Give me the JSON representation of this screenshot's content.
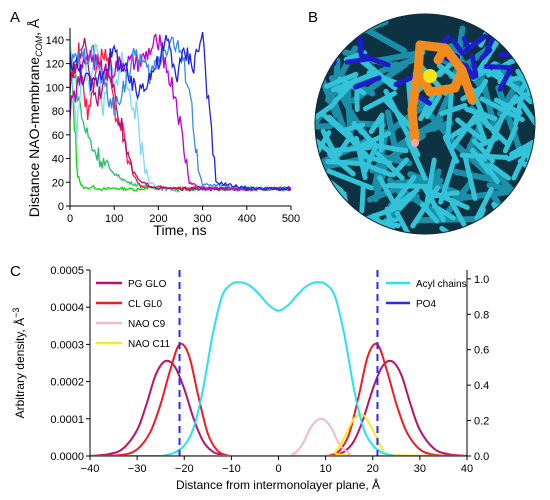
{
  "panels": {
    "a": "A",
    "b": "B",
    "c": "C"
  },
  "chart_data": [
    {
      "panel": "A",
      "type": "line",
      "xlabel": "Time, ns",
      "ylabel": "Distance NAO-membrane",
      "ylabel_sub": "COM",
      "ylabel_unit": ", Å",
      "xlim": [
        0,
        500
      ],
      "ylim": [
        0,
        150
      ],
      "xticks": [
        0,
        100,
        200,
        300,
        400,
        500
      ],
      "yticks": [
        0,
        20,
        40,
        60,
        80,
        100,
        120,
        140
      ],
      "grid": false,
      "series": [
        {
          "color": "#00e000",
          "x": [
            0,
            5,
            10,
            15,
            20,
            25,
            35,
            50,
            75,
            100,
            150,
            200,
            250,
            300,
            350,
            400,
            450,
            500
          ],
          "y": [
            120,
            100,
            70,
            40,
            25,
            17,
            15,
            16,
            14,
            15,
            14,
            16,
            13,
            15,
            14,
            16,
            14,
            15
          ]
        },
        {
          "color": "#22c26a",
          "x": [
            0,
            10,
            20,
            30,
            50,
            70,
            90,
            110,
            130,
            150,
            180,
            200,
            220,
            300,
            400,
            500
          ],
          "y": [
            130,
            110,
            90,
            70,
            50,
            40,
            30,
            25,
            20,
            18,
            16,
            15,
            14,
            15,
            14,
            15
          ]
        },
        {
          "color": "#7bd8ff",
          "x": [
            0,
            15,
            30,
            45,
            60,
            75,
            90,
            105,
            120,
            135,
            150,
            160,
            170,
            180,
            200,
            300,
            400,
            500
          ],
          "y": [
            140,
            60,
            130,
            100,
            140,
            80,
            120,
            100,
            130,
            90,
            80,
            50,
            35,
            20,
            15,
            14,
            15,
            14
          ]
        },
        {
          "color": "#ff1a4a",
          "x": [
            0,
            20,
            40,
            60,
            80,
            100,
            115,
            130,
            145,
            160,
            300,
            400,
            500
          ],
          "y": [
            105,
            130,
            75,
            120,
            130,
            80,
            70,
            40,
            25,
            16,
            15,
            14,
            15
          ]
        },
        {
          "color": "#b01070",
          "x": [
            0,
            30,
            60,
            90,
            120,
            140,
            160,
            200,
            300,
            400,
            500
          ],
          "y": [
            100,
            140,
            90,
            120,
            60,
            30,
            20,
            15,
            14,
            15,
            14
          ]
        },
        {
          "color": "#bb00cc",
          "x": [
            0,
            40,
            80,
            120,
            160,
            200,
            240,
            270,
            300,
            400,
            500
          ],
          "y": [
            80,
            130,
            110,
            120,
            120,
            140,
            90,
            20,
            15,
            14,
            15
          ]
        },
        {
          "color": "#3a8be0",
          "x": [
            0,
            50,
            100,
            150,
            180,
            210,
            230,
            250,
            270,
            290,
            300,
            400,
            500
          ],
          "y": [
            120,
            130,
            80,
            130,
            110,
            130,
            140,
            130,
            100,
            30,
            18,
            15,
            14
          ]
        },
        {
          "color": "#2020d8",
          "x": [
            0,
            50,
            100,
            150,
            200,
            220,
            240,
            260,
            280,
            300,
            310,
            320,
            330,
            400,
            500
          ],
          "y": [
            125,
            100,
            130,
            95,
            120,
            140,
            110,
            130,
            120,
            145,
            100,
            60,
            20,
            15,
            14
          ]
        }
      ]
    },
    {
      "panel": "C",
      "type": "line",
      "xlabel": "Distance from intermonolayer plane, Å",
      "ylabel": "Arbitrary density, Å",
      "ylabel_sup": "−3",
      "xlim": [
        -40,
        40
      ],
      "ylim_left": [
        0,
        0.0005
      ],
      "ylim_right": [
        0,
        1.05
      ],
      "xticks": [
        -40,
        -30,
        -20,
        -10,
        0,
        10,
        20,
        30,
        40
      ],
      "yticks_left": [
        "0.0000",
        "0.0001",
        "0.0002",
        "0.0003",
        "0.0004",
        "0.0005"
      ],
      "yticks_right": [
        "0.0",
        "0.2",
        "0.4",
        "0.6",
        "0.8",
        "1.0"
      ],
      "grid": false,
      "legend_left": "top-left",
      "legend_right": "top-right",
      "series": [
        {
          "name": "PG GLO",
          "color": "#b5136f",
          "axis": "left",
          "x": [
            -40,
            -36,
            -33,
            -30,
            -28,
            -26,
            -24,
            -22,
            -20,
            -18,
            -16,
            -14,
            -12,
            -10,
            0,
            10,
            12,
            14,
            16,
            18,
            20,
            22,
            24,
            26,
            28,
            30,
            33,
            36,
            40
          ],
          "y": [
            0,
            5e-06,
            2e-05,
            7e-05,
            0.00014,
            0.00022,
            0.000255,
            0.00024,
            0.00018,
            0.0001,
            4e-05,
            1.2e-05,
            3e-06,
            0,
            0,
            0,
            3e-06,
            1.2e-05,
            4e-05,
            0.0001,
            0.00018,
            0.00024,
            0.000255,
            0.00022,
            0.00014,
            7e-05,
            2e-05,
            5e-06,
            0
          ]
        },
        {
          "name": "CL GL0",
          "color": "#ee1c25",
          "axis": "left",
          "x": [
            -40,
            -34,
            -31,
            -29,
            -27,
            -25,
            -23,
            -21,
            -19,
            -17,
            -15,
            -13,
            -11,
            -9,
            0,
            9,
            11,
            13,
            15,
            17,
            19,
            21,
            23,
            25,
            27,
            29,
            31,
            34,
            40
          ],
          "y": [
            0,
            2e-06,
            1e-05,
            3e-05,
            7e-05,
            0.00014,
            0.00023,
            0.0003,
            0.00027,
            0.00016,
            6e-05,
            1.5e-05,
            2e-06,
            0,
            0,
            0,
            2e-06,
            1.5e-05,
            6e-05,
            0.00016,
            0.00027,
            0.0003,
            0.00023,
            0.00014,
            7e-05,
            3e-05,
            1e-05,
            2e-06,
            0
          ]
        },
        {
          "name": "NAO C9",
          "color": "#f6b8c8",
          "axis": "left",
          "x": [
            -40,
            0,
            3,
            5,
            7,
            9,
            11,
            13,
            15,
            17,
            40
          ],
          "y": [
            0,
            0,
            5e-06,
            3e-05,
            8e-05,
            0.0001,
            8e-05,
            3e-05,
            8e-06,
            0,
            0
          ]
        },
        {
          "name": "NAO C11",
          "color": "#f2ee1d",
          "axis": "left",
          "x": [
            -40,
            10,
            12,
            14,
            16,
            18,
            20,
            22,
            24,
            40
          ],
          "y": [
            0,
            0,
            1e-05,
            5e-05,
            0.0001,
            0.00011,
            7e-05,
            2e-05,
            3e-06,
            0
          ]
        },
        {
          "name": "Acyl chains",
          "color": "#27e2ef",
          "axis": "right",
          "x": [
            -40,
            -26,
            -24,
            -22,
            -20,
            -18,
            -16,
            -14,
            -12,
            -10,
            -8,
            -6,
            -4,
            -2,
            0,
            2,
            4,
            6,
            8,
            10,
            12,
            14,
            16,
            18,
            20,
            22,
            24,
            26,
            40
          ],
          "y": [
            0,
            0,
            0.004,
            0.02,
            0.06,
            0.16,
            0.38,
            0.68,
            0.9,
            0.97,
            0.98,
            0.96,
            0.91,
            0.85,
            0.82,
            0.85,
            0.91,
            0.96,
            0.98,
            0.97,
            0.9,
            0.68,
            0.38,
            0.16,
            0.06,
            0.02,
            0.004,
            0,
            0
          ]
        },
        {
          "name": "PO4",
          "color": "#2b2bf0",
          "axis": "right",
          "vlines": [
            -21,
            21
          ]
        }
      ]
    }
  ],
  "image_b": {
    "description_colors": {
      "membrane": "#33c3d9",
      "membrane_dark": "#1b8fa8",
      "headgroup": "#1c1cc8",
      "ligand": "#f28b1e",
      "ligand_dark": "#c65f00",
      "atom_yellow": "#f5e51a",
      "atom_pink": "#f4a6a6"
    }
  }
}
